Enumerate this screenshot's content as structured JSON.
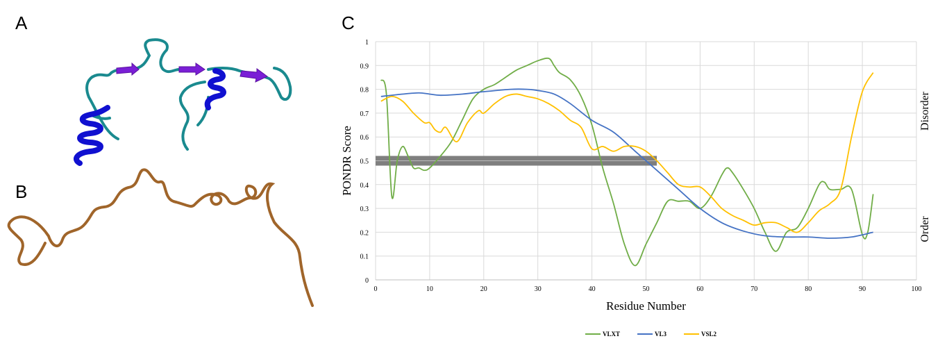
{
  "panel_labels": [
    "A",
    "B",
    "C"
  ],
  "chart_data": {
    "type": "line",
    "xlabel": "Residue Number",
    "ylabel": "PONDR Score",
    "side_labels": [
      "Disorder",
      "Order"
    ],
    "xlim": [
      0,
      100
    ],
    "xticks": [
      0,
      10,
      20,
      30,
      40,
      50,
      60,
      70,
      80,
      90,
      100
    ],
    "ylim": [
      0,
      1
    ],
    "yticks": [
      0,
      0.1,
      0.2,
      0.3,
      0.4,
      0.5,
      0.6,
      0.7,
      0.8,
      0.9,
      1
    ],
    "grid": true,
    "threshold": 0.5,
    "threshold_xlim": [
      0,
      52
    ],
    "threshold_color": "#7f7f7f",
    "series": [
      {
        "name": "VLXT",
        "color": "#70ad47",
        "x": [
          1,
          2,
          3,
          4,
          5,
          6,
          7,
          8,
          9,
          10,
          12,
          14,
          16,
          18,
          20,
          22,
          24,
          26,
          28,
          30,
          32,
          33,
          34,
          36,
          38,
          40,
          42,
          44,
          46,
          48,
          50,
          52,
          54,
          56,
          58,
          60,
          62,
          64,
          65,
          66,
          68,
          70,
          72,
          74,
          76,
          78,
          80,
          82,
          83,
          84,
          86,
          88,
          90,
          91,
          92
        ],
        "values": [
          0.84,
          0.78,
          0.35,
          0.5,
          0.56,
          0.52,
          0.47,
          0.47,
          0.46,
          0.47,
          0.52,
          0.58,
          0.67,
          0.76,
          0.8,
          0.82,
          0.85,
          0.88,
          0.9,
          0.92,
          0.93,
          0.9,
          0.87,
          0.84,
          0.77,
          0.65,
          0.47,
          0.32,
          0.15,
          0.06,
          0.15,
          0.24,
          0.33,
          0.33,
          0.33,
          0.3,
          0.35,
          0.44,
          0.47,
          0.45,
          0.38,
          0.3,
          0.2,
          0.12,
          0.2,
          0.22,
          0.3,
          0.4,
          0.41,
          0.38,
          0.38,
          0.38,
          0.19,
          0.2,
          0.36
        ]
      },
      {
        "name": "VL3",
        "color": "#4472c4",
        "x": [
          1,
          5,
          8,
          10,
          12,
          16,
          20,
          25,
          28,
          30,
          33,
          36,
          40,
          44,
          48,
          52,
          56,
          60,
          64,
          68,
          72,
          76,
          80,
          84,
          88,
          92
        ],
        "values": [
          0.77,
          0.78,
          0.785,
          0.78,
          0.775,
          0.78,
          0.79,
          0.8,
          0.8,
          0.795,
          0.78,
          0.74,
          0.67,
          0.62,
          0.54,
          0.46,
          0.38,
          0.3,
          0.24,
          0.205,
          0.185,
          0.18,
          0.18,
          0.175,
          0.18,
          0.2
        ]
      },
      {
        "name": "VSL2",
        "color": "#ffc000",
        "x": [
          1,
          3,
          5,
          7,
          9,
          10,
          11,
          12,
          13,
          15,
          17,
          19,
          20,
          22,
          24,
          26,
          28,
          30,
          32,
          34,
          36,
          38,
          40,
          42,
          44,
          46,
          48,
          50,
          52,
          54,
          56,
          58,
          60,
          62,
          64,
          66,
          68,
          70,
          72,
          74,
          76,
          78,
          80,
          82,
          84,
          86,
          88,
          90,
          92
        ],
        "values": [
          0.75,
          0.77,
          0.75,
          0.7,
          0.66,
          0.66,
          0.63,
          0.62,
          0.64,
          0.58,
          0.66,
          0.71,
          0.7,
          0.74,
          0.77,
          0.78,
          0.77,
          0.76,
          0.74,
          0.71,
          0.67,
          0.64,
          0.55,
          0.56,
          0.54,
          0.56,
          0.56,
          0.54,
          0.5,
          0.45,
          0.4,
          0.39,
          0.39,
          0.35,
          0.3,
          0.27,
          0.25,
          0.23,
          0.24,
          0.24,
          0.22,
          0.2,
          0.24,
          0.29,
          0.32,
          0.38,
          0.6,
          0.79,
          0.87
        ]
      }
    ]
  }
}
